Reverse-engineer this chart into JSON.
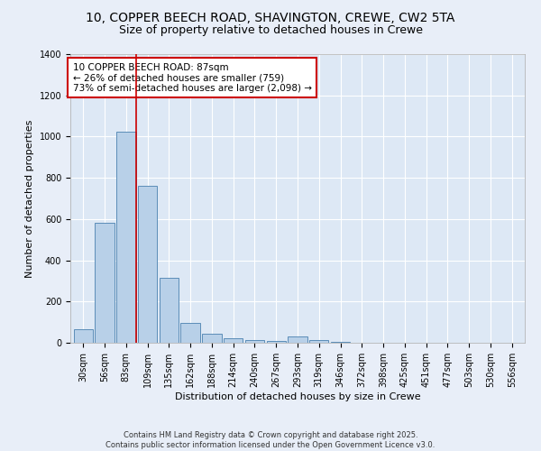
{
  "title1": "10, COPPER BEECH ROAD, SHAVINGTON, CREWE, CW2 5TA",
  "title2": "Size of property relative to detached houses in Crewe",
  "xlabel": "Distribution of detached houses by size in Crewe",
  "ylabel": "Number of detached properties",
  "categories": [
    "30sqm",
    "56sqm",
    "83sqm",
    "109sqm",
    "135sqm",
    "162sqm",
    "188sqm",
    "214sqm",
    "240sqm",
    "267sqm",
    "293sqm",
    "319sqm",
    "346sqm",
    "372sqm",
    "398sqm",
    "425sqm",
    "451sqm",
    "477sqm",
    "503sqm",
    "530sqm",
    "556sqm"
  ],
  "values": [
    65,
    580,
    1025,
    760,
    315,
    95,
    45,
    22,
    15,
    10,
    30,
    12,
    5,
    2,
    1,
    1,
    1,
    0,
    0,
    0,
    2
  ],
  "bar_color": "#b8d0e8",
  "bar_edge_color": "#5b8db8",
  "vline_x": 2,
  "vline_color": "#cc0000",
  "annotation_text": "10 COPPER BEECH ROAD: 87sqm\n← 26% of detached houses are smaller (759)\n73% of semi-detached houses are larger (2,098) →",
  "annotation_box_color": "#ffffff",
  "annotation_box_edge": "#cc0000",
  "footer1": "Contains HM Land Registry data © Crown copyright and database right 2025.",
  "footer2": "Contains public sector information licensed under the Open Government Licence v3.0.",
  "bg_color": "#e8eef8",
  "plot_bg_color": "#dde8f5",
  "ylim": [
    0,
    1400
  ],
  "title_fontsize": 10,
  "subtitle_fontsize": 9,
  "annot_fontsize": 7.5,
  "axis_label_fontsize": 8,
  "tick_fontsize": 7,
  "footer_fontsize": 6
}
